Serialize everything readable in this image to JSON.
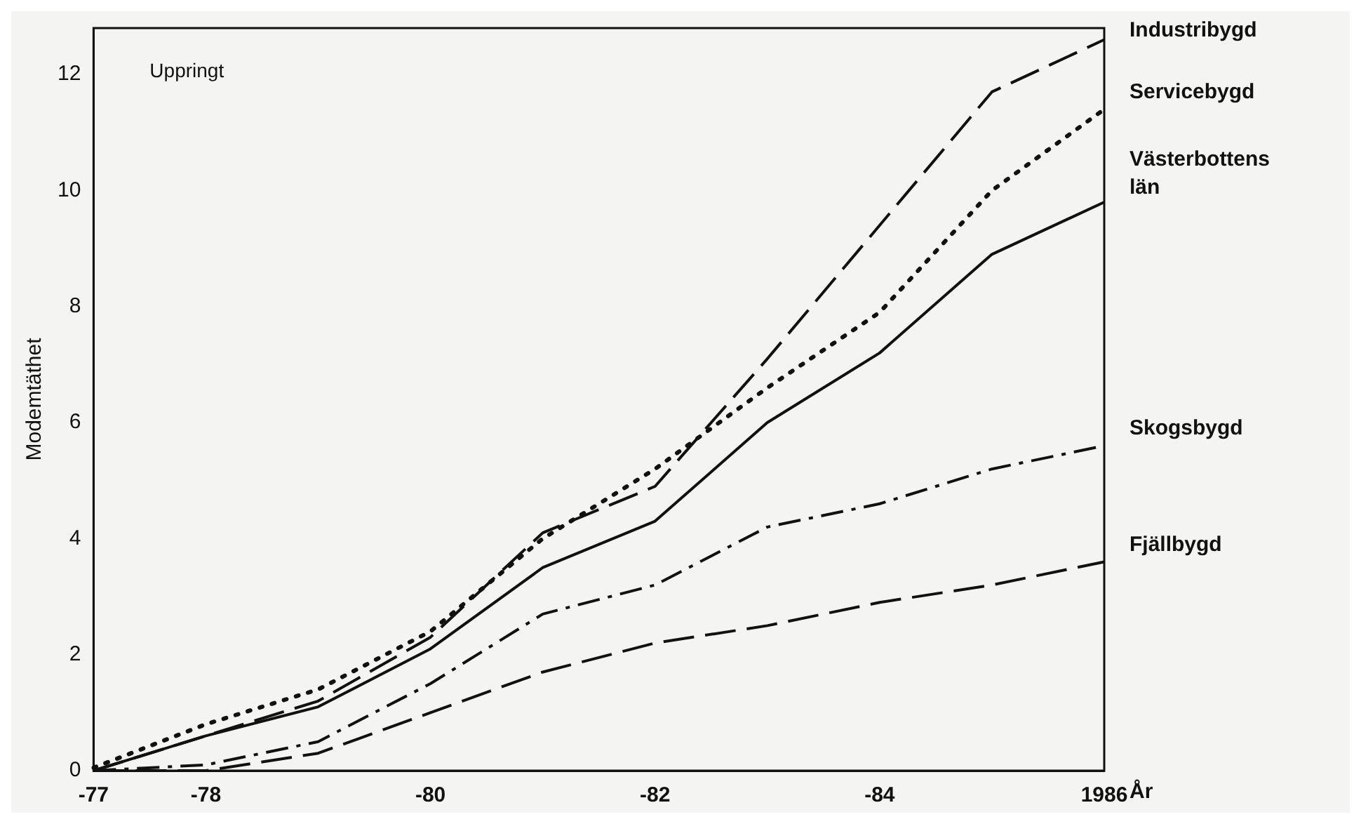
{
  "chart_data": {
    "type": "line",
    "ylabel": "Modemtäthet",
    "xlabel": "År",
    "annotations": [
      "Uppringt"
    ],
    "categories": [
      "-77",
      "-78",
      null,
      "-80",
      null,
      "-82",
      null,
      "-84",
      null,
      "1986"
    ],
    "ylim": [
      0,
      12.8
    ],
    "yticks": [
      0,
      2,
      4,
      6,
      8,
      10,
      12
    ],
    "grid": false,
    "legend": false,
    "series": [
      {
        "name": "Industribygd",
        "color": "#111111",
        "line_style": "dashed",
        "values": [
          0,
          0.6,
          1.2,
          2.3,
          4.1,
          4.9,
          7.1,
          9.4,
          11.7,
          12.6
        ]
      },
      {
        "name": "Servicebygd",
        "color": "#111111",
        "line_style": "dotted",
        "values": [
          0.05,
          0.8,
          1.4,
          2.4,
          4.0,
          5.2,
          6.6,
          7.9,
          10.0,
          11.4
        ]
      },
      {
        "name": "Västerbottens län",
        "color": "#111111",
        "line_style": "solid",
        "values": [
          0,
          0.6,
          1.1,
          2.1,
          3.5,
          4.3,
          6.0,
          7.2,
          8.9,
          9.8
        ]
      },
      {
        "name": "Skogsbygd",
        "color": "#111111",
        "line_style": "dashdot",
        "values": [
          0,
          0.1,
          0.5,
          1.5,
          2.7,
          3.2,
          4.2,
          4.6,
          5.2,
          5.6
        ]
      },
      {
        "name": "Fjällbygd",
        "color": "#111111",
        "line_style": "dashed",
        "values": [
          0,
          0,
          0.3,
          1.0,
          1.7,
          2.2,
          2.5,
          2.9,
          3.2,
          3.6
        ]
      }
    ]
  }
}
